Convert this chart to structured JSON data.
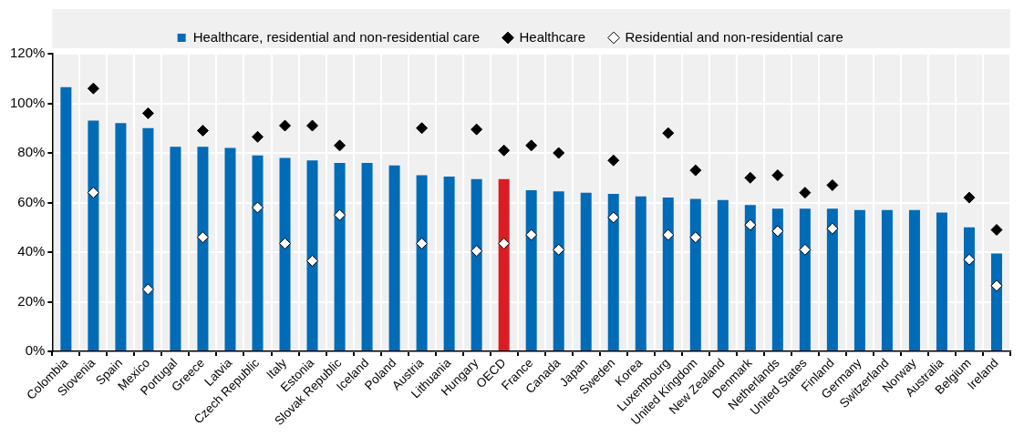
{
  "chart_data": {
    "type": "bar",
    "categories": [
      "Colombia",
      "Slovenia",
      "Spain",
      "Mexico",
      "Portugal",
      "Greece",
      "Latvia",
      "Czech Republic",
      "Italy",
      "Estonia",
      "Slovak Republic",
      "Iceland",
      "Poland",
      "Austria",
      "Lithuania",
      "Hungary",
      "OECD",
      "France",
      "Canada",
      "Japan",
      "Sweden",
      "Korea",
      "Luxembourg",
      "United Kingdom",
      "New Zealand",
      "Denmark",
      "Netherlands",
      "United States",
      "Finland",
      "Germany",
      "Switzerland",
      "Norway",
      "Australia",
      "Belgium",
      "Ireland"
    ],
    "series": [
      {
        "name": "Healthcare, residential and non-residential care",
        "color": "#006bb6",
        "colors": [
          "#006bb6",
          "#006bb6",
          "#006bb6",
          "#006bb6",
          "#006bb6",
          "#006bb6",
          "#006bb6",
          "#006bb6",
          "#006bb6",
          "#006bb6",
          "#006bb6",
          "#006bb6",
          "#006bb6",
          "#006bb6",
          "#006bb6",
          "#006bb6",
          "#dc1c24",
          "#006bb6",
          "#006bb6",
          "#006bb6",
          "#006bb6",
          "#006bb6",
          "#006bb6",
          "#006bb6",
          "#006bb6",
          "#006bb6",
          "#006bb6",
          "#006bb6",
          "#006bb6",
          "#006bb6",
          "#006bb6",
          "#006bb6",
          "#006bb6",
          "#006bb6",
          "#006bb6"
        ],
        "values": [
          106.5,
          93,
          92,
          90,
          82.5,
          82.5,
          82,
          79,
          78,
          77,
          76,
          76,
          75,
          71,
          70.5,
          69.5,
          69.5,
          65,
          64.5,
          64,
          63.5,
          62.5,
          62,
          61.5,
          61,
          59,
          57.5,
          57.5,
          57.5,
          57,
          57,
          57,
          56,
          50,
          39.5
        ]
      },
      {
        "type": "scatter",
        "name": "Healthcare",
        "color": "#000000",
        "marker": "diamond",
        "x": [
          "Colombia",
          "Slovenia",
          "Spain",
          "Mexico",
          "Portugal",
          "Greece",
          "Latvia",
          "Czech Republic",
          "Italy",
          "Estonia",
          "Slovak Republic",
          "Iceland",
          "Poland",
          "Austria",
          "Lithuania",
          "Hungary",
          "OECD",
          "France",
          "Canada",
          "Japan",
          "Sweden",
          "Korea",
          "Luxembourg",
          "United Kingdom",
          "New Zealand",
          "Denmark",
          "Netherlands",
          "United States",
          "Finland",
          "Germany",
          "Switzerland",
          "Norway",
          "Australia",
          "Belgium",
          "Ireland"
        ],
        "values": [
          null,
          106,
          null,
          96,
          null,
          89,
          null,
          86.5,
          91,
          91,
          83,
          null,
          null,
          90,
          null,
          89.5,
          81,
          83,
          80,
          null,
          77,
          null,
          88,
          73,
          null,
          70,
          71,
          64,
          67,
          null,
          null,
          null,
          null,
          62,
          49
        ]
      },
      {
        "type": "scatter",
        "name": "Residential and non-residential care",
        "color": "#ffffff",
        "marker": "diamond",
        "x": [
          "Colombia",
          "Slovenia",
          "Spain",
          "Mexico",
          "Portugal",
          "Greece",
          "Latvia",
          "Czech Republic",
          "Italy",
          "Estonia",
          "Slovak Republic",
          "Iceland",
          "Poland",
          "Austria",
          "Lithuania",
          "Hungary",
          "OECD",
          "France",
          "Canada",
          "Japan",
          "Sweden",
          "Korea",
          "Luxembourg",
          "United Kingdom",
          "New Zealand",
          "Denmark",
          "Netherlands",
          "United States",
          "Finland",
          "Germany",
          "Switzerland",
          "Norway",
          "Australia",
          "Belgium",
          "Ireland"
        ],
        "values": [
          null,
          64,
          null,
          25,
          null,
          46,
          null,
          58,
          43.5,
          36.5,
          55,
          null,
          null,
          43.5,
          null,
          40.5,
          43.5,
          47,
          41,
          null,
          54,
          null,
          47,
          46,
          null,
          51,
          48.5,
          41,
          49.5,
          null,
          null,
          null,
          null,
          37,
          26.5
        ]
      }
    ],
    "ylim": [
      0,
      120
    ],
    "yticks": [
      {
        "value": 0,
        "label": "0%"
      },
      {
        "value": 20,
        "label": "20%"
      },
      {
        "value": 40,
        "label": "40%"
      },
      {
        "value": 60,
        "label": "60%"
      },
      {
        "value": 80,
        "label": "80%"
      },
      {
        "value": 100,
        "label": "100%"
      },
      {
        "value": 120,
        "label": "120%"
      }
    ],
    "grid": true,
    "legend": "top"
  }
}
